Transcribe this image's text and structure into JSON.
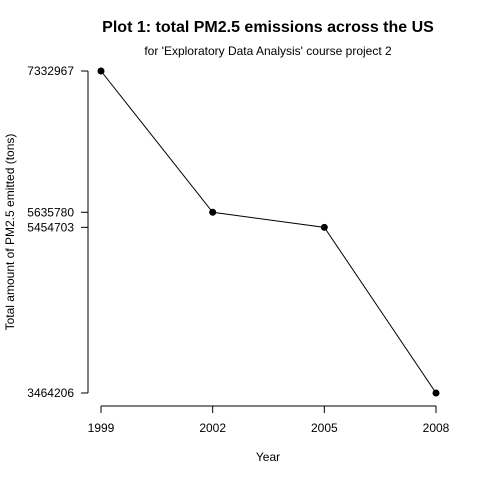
{
  "chart_data": {
    "type": "line",
    "title": "Plot 1: total PM2.5 emissions across the US",
    "subtitle": "for 'Exploratory Data Analysis' course project 2",
    "xlabel": "Year",
    "ylabel": "Total amount of PM2.5 emitted (tons)",
    "x": [
      1999,
      2002,
      2005,
      2008
    ],
    "y": [
      7332967,
      5635780,
      5454703,
      3464206
    ],
    "x_ticks": [
      "1999",
      "2002",
      "2005",
      "2008"
    ],
    "y_ticks": [
      "3464206",
      "5454703",
      "5635780",
      "7332967"
    ],
    "xlim": [
      1999,
      2008
    ],
    "ylim": [
      3464206,
      7332967
    ],
    "grid": false,
    "legend": "none",
    "colors": {
      "line": "#000000",
      "points": "#000000"
    }
  }
}
